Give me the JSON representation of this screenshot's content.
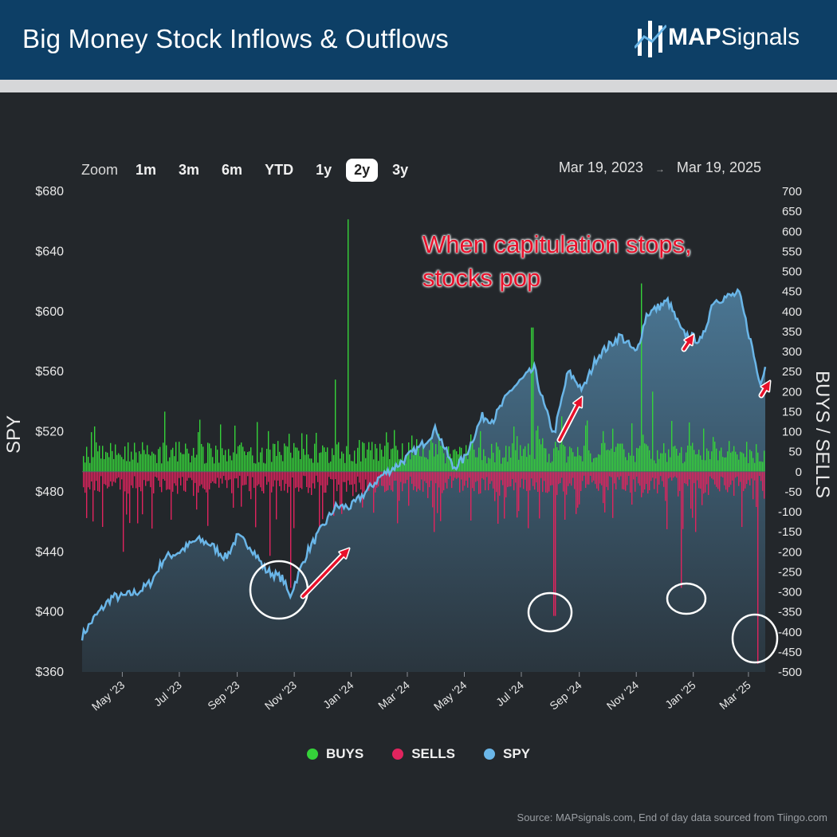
{
  "header": {
    "title": "Big Money Stock Inflows & Outflows",
    "logo_text_bold": "MAP",
    "logo_text_regular": "Signals"
  },
  "zoom": {
    "label": "Zoom",
    "options": [
      "1m",
      "3m",
      "6m",
      "YTD",
      "1y",
      "2y",
      "3y"
    ],
    "active": "2y"
  },
  "range": {
    "start": "Mar 19, 2023",
    "end": "Mar 19, 2025",
    "separator": "→"
  },
  "annotation": {
    "line1": "When capitulation stops,",
    "line2": "stocks pop"
  },
  "legend": {
    "buys": "BUYS",
    "sells": "SELLS",
    "spy": "SPY"
  },
  "source": "Source: MAPsignals.com, End of day data sourced from Tiingo.com",
  "colors": {
    "buys": "#35d23a",
    "sells": "#e0245e",
    "spy": "#6ab6e8",
    "annotation": "#e8102a"
  },
  "chart_data": {
    "type": "bar+area",
    "left_axis": {
      "label": "SPY",
      "ticks": [
        "$680",
        "$640",
        "$600",
        "$560",
        "$520",
        "$480",
        "$440",
        "$400",
        "$360"
      ],
      "range": [
        360,
        680
      ]
    },
    "right_axis": {
      "label": "BUYS / SELLS",
      "ticks": [
        "700",
        "650",
        "600",
        "550",
        "500",
        "450",
        "400",
        "350",
        "300",
        "250",
        "200",
        "150",
        "100",
        "50",
        "0",
        "-50",
        "-100",
        "-150",
        "-200",
        "-250",
        "-300",
        "-350",
        "-400",
        "-450",
        "-500"
      ],
      "range": [
        -500,
        700
      ]
    },
    "x_ticks": [
      "May '23",
      "Jul '23",
      "Sep '23",
      "Nov '23",
      "Jan '24",
      "Mar '24",
      "May '24",
      "Jul '24",
      "Sep '24",
      "Nov '24",
      "Jan '25",
      "Mar '25"
    ],
    "spy_series": {
      "name": "SPY",
      "points": [
        [
          "2023-03-19",
          384
        ],
        [
          "2023-04-01",
          396
        ],
        [
          "2023-04-20",
          410
        ],
        [
          "2023-05-01",
          410
        ],
        [
          "2023-05-20",
          414
        ],
        [
          "2023-06-01",
          420
        ],
        [
          "2023-06-15",
          436
        ],
        [
          "2023-07-01",
          440
        ],
        [
          "2023-07-20",
          448
        ],
        [
          "2023-08-01",
          446
        ],
        [
          "2023-08-20",
          436
        ],
        [
          "2023-09-01",
          450
        ],
        [
          "2023-09-15",
          444
        ],
        [
          "2023-10-01",
          428
        ],
        [
          "2023-10-20",
          422
        ],
        [
          "2023-10-27",
          410
        ],
        [
          "2023-11-01",
          418
        ],
        [
          "2023-11-15",
          440
        ],
        [
          "2023-12-01",
          456
        ],
        [
          "2023-12-15",
          470
        ],
        [
          "2024-01-01",
          470
        ],
        [
          "2024-01-20",
          482
        ],
        [
          "2024-02-01",
          490
        ],
        [
          "2024-02-20",
          498
        ],
        [
          "2024-03-15",
          510
        ],
        [
          "2024-04-01",
          522
        ],
        [
          "2024-04-19",
          496
        ],
        [
          "2024-05-01",
          502
        ],
        [
          "2024-05-20",
          530
        ],
        [
          "2024-06-01",
          528
        ],
        [
          "2024-06-20",
          548
        ],
        [
          "2024-07-15",
          562
        ],
        [
          "2024-07-25",
          538
        ],
        [
          "2024-08-05",
          518
        ],
        [
          "2024-08-20",
          560
        ],
        [
          "2024-09-05",
          548
        ],
        [
          "2024-09-20",
          570
        ],
        [
          "2024-10-15",
          584
        ],
        [
          "2024-11-01",
          572
        ],
        [
          "2024-11-12",
          598
        ],
        [
          "2024-12-05",
          607
        ],
        [
          "2024-12-20",
          586
        ],
        [
          "2025-01-10",
          580
        ],
        [
          "2025-01-22",
          607
        ],
        [
          "2025-02-19",
          612
        ],
        [
          "2025-03-05",
          576
        ],
        [
          "2025-03-13",
          552
        ],
        [
          "2025-03-19",
          564
        ]
      ]
    },
    "flow_events": {
      "buys_peaks": [
        [
          "2023-12-28",
          630,
          "peak"
        ],
        [
          "2023-12-14",
          230
        ],
        [
          "2024-07-12",
          360
        ],
        [
          "2024-11-06",
          470
        ],
        [
          "2024-11-18",
          200
        ],
        [
          "2023-06-15",
          150
        ]
      ],
      "sells_troughs": [
        [
          "2024-08-05",
          -360
        ],
        [
          "2024-12-18",
          -290
        ],
        [
          "2025-03-10",
          -480
        ],
        [
          "2023-10-27",
          -290
        ],
        [
          "2023-10-05",
          -210
        ],
        [
          "2023-05-01",
          -200
        ]
      ]
    },
    "highlight_markers": [
      "2023-10-27",
      "2024-08-05",
      "2024-12-18",
      "2025-03-10"
    ],
    "arrows": [
      "2023-11-15",
      "2024-08-20",
      "2025-01-05",
      "2025-03-19"
    ]
  }
}
